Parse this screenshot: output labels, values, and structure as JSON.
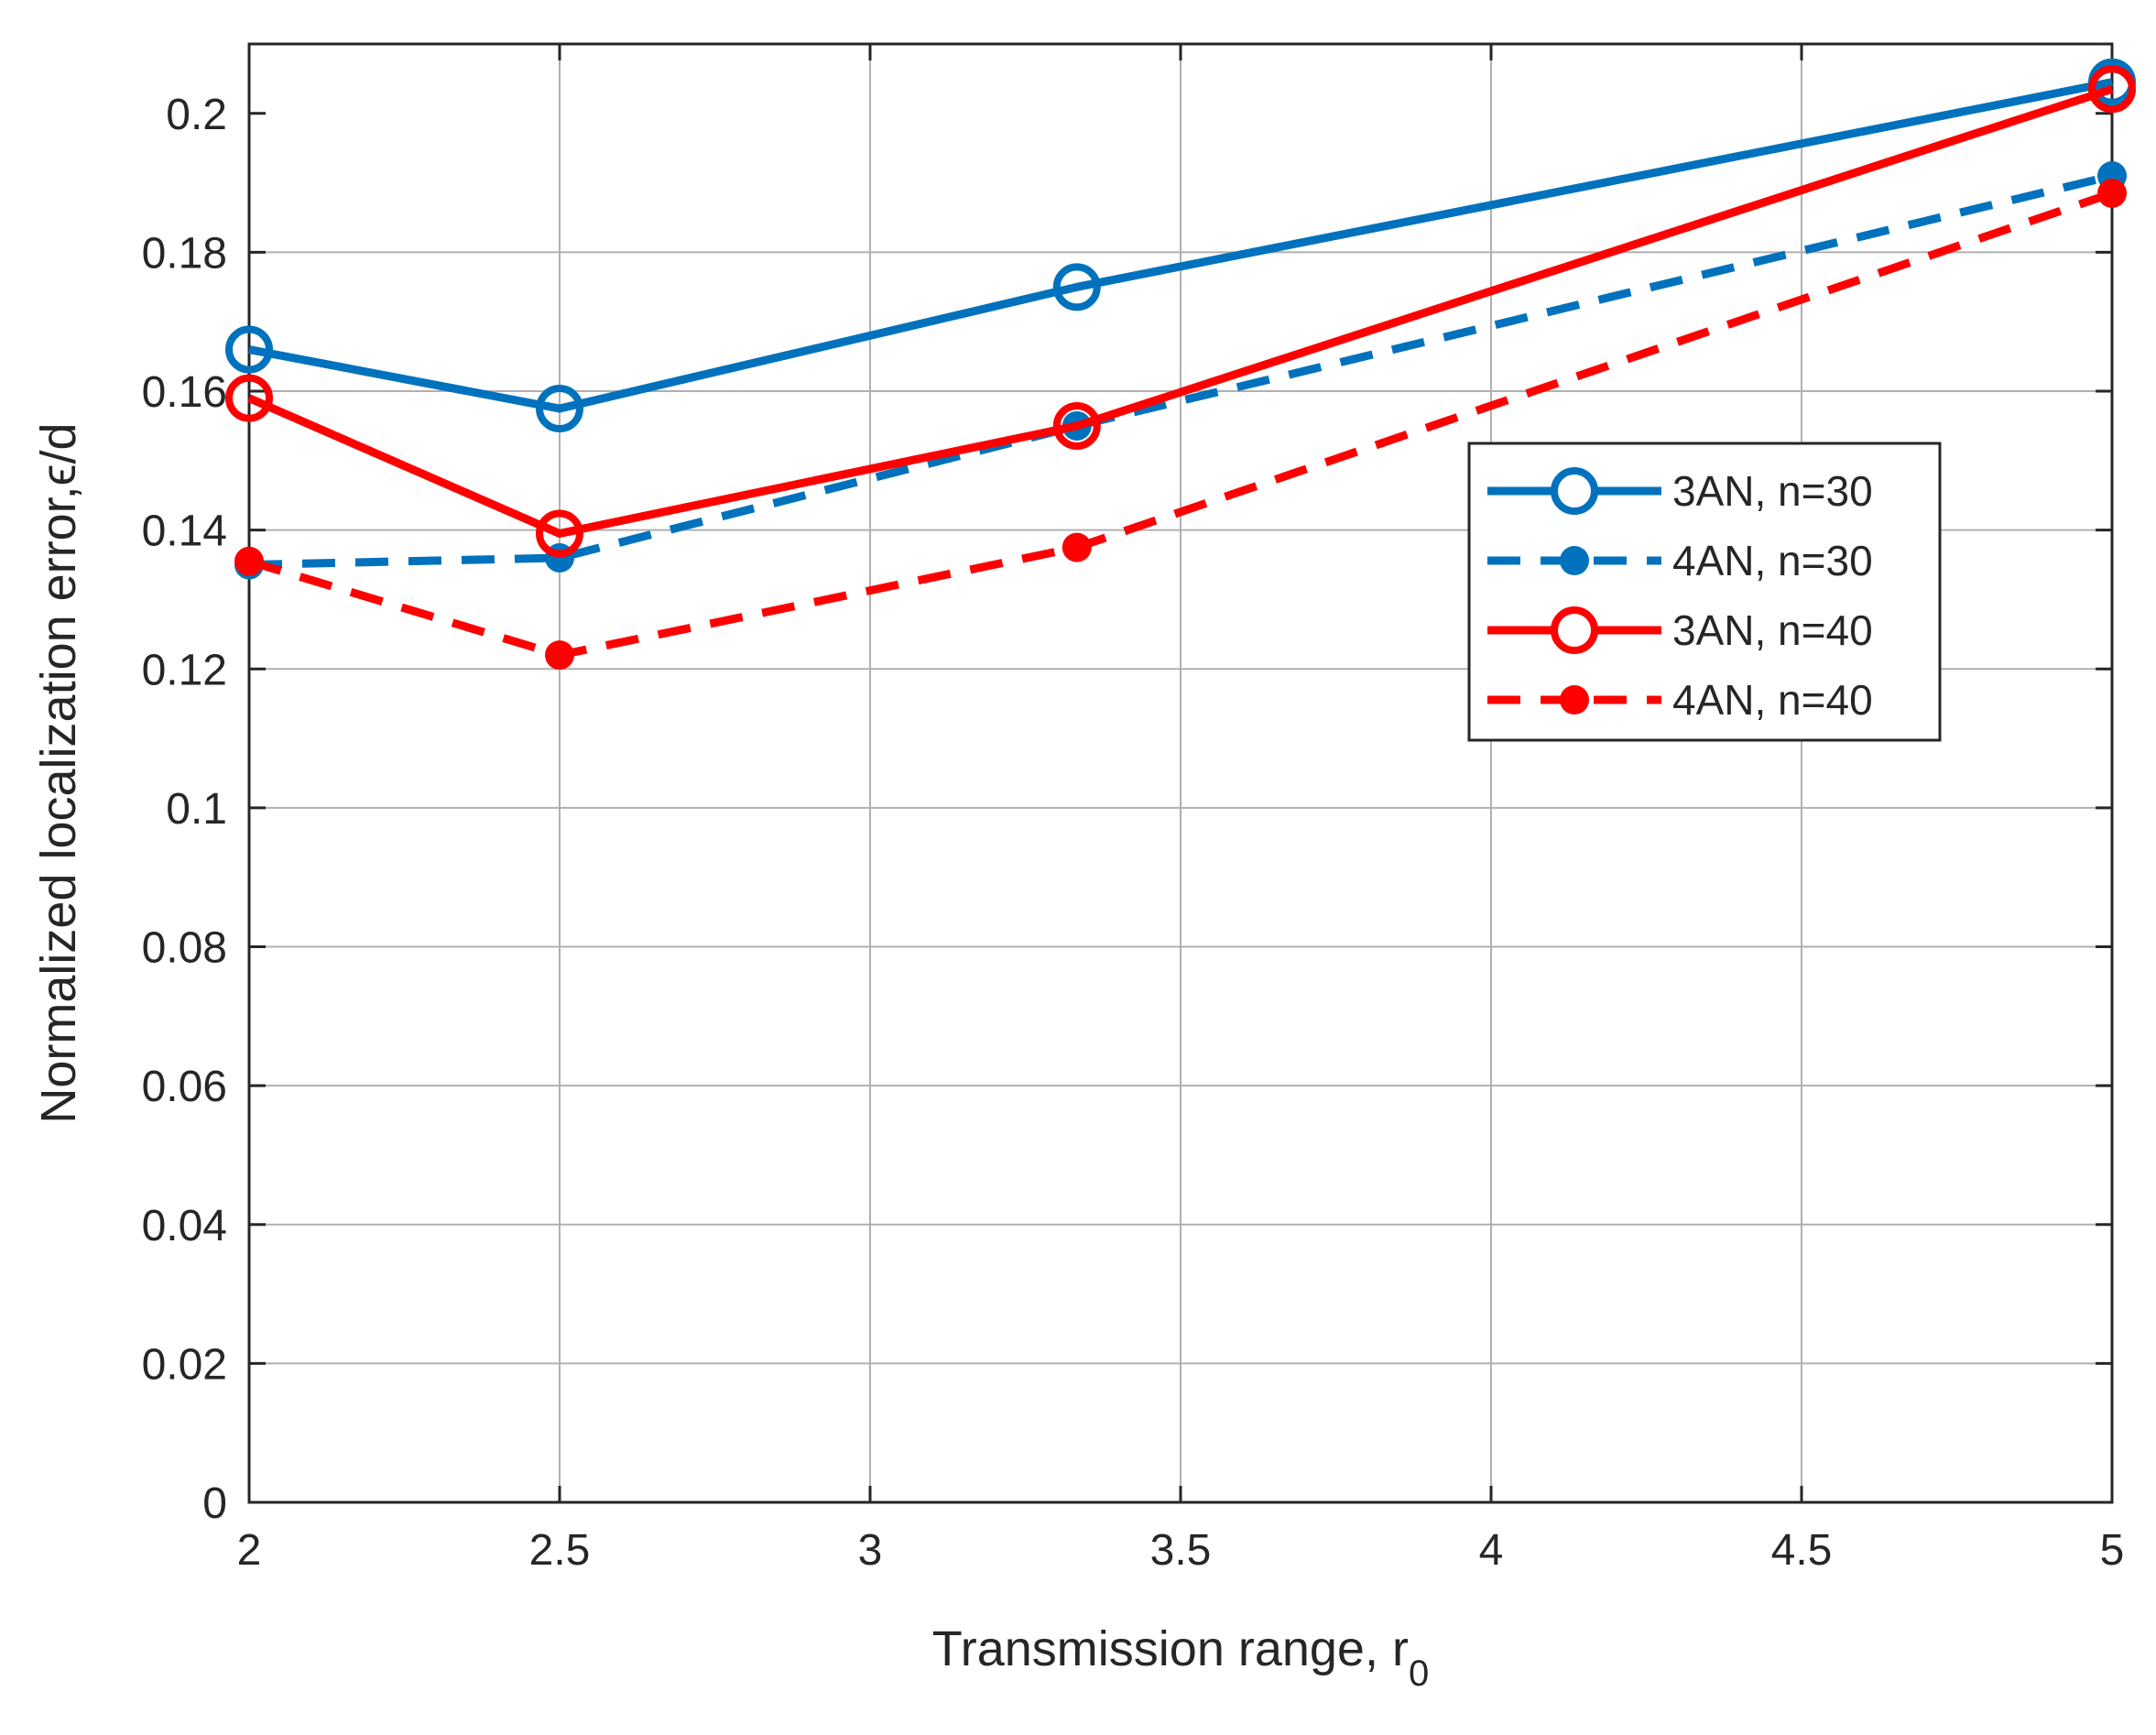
{
  "chart_data": {
    "type": "line",
    "title": "",
    "xlabel": "Transmission range, r",
    "xlabel_subscript": "0",
    "ylabel": "Normalized localization error,",
    "ylabel_symbol": "ϵ/d",
    "xlim": [
      2,
      5
    ],
    "ylim": [
      0,
      0.21
    ],
    "xticks": [
      2,
      2.5,
      3,
      3.5,
      4,
      4.5,
      5
    ],
    "xtick_labels": [
      "2",
      "2.5",
      "3",
      "3.5",
      "4",
      "4.5",
      "5"
    ],
    "yticks": [
      0,
      0.02,
      0.04,
      0.06,
      0.08,
      0.1,
      0.12,
      0.14,
      0.16,
      0.18,
      0.2
    ],
    "ytick_labels": [
      "0",
      "0.02",
      "0.04",
      "0.06",
      "0.08",
      "0.1",
      "0.12",
      "0.14",
      "0.16",
      "0.18",
      "0.2"
    ],
    "grid": true,
    "legend_position": "right",
    "x": [
      2,
      2.5,
      3.333,
      5
    ],
    "series": [
      {
        "name": "3AN, n=30",
        "color": "#0072BD",
        "line": "solid",
        "marker": "open-circle",
        "values": [
          0.166,
          0.1575,
          0.175,
          0.2045
        ]
      },
      {
        "name": "4AN, n=30",
        "color": "#0072BD",
        "line": "dashed",
        "marker": "filled-circle",
        "values": [
          0.135,
          0.136,
          0.155,
          0.191
        ]
      },
      {
        "name": "3AN, n=40",
        "color": "#FF0000",
        "line": "solid",
        "marker": "open-circle",
        "values": [
          0.159,
          0.1395,
          0.155,
          0.2035
        ]
      },
      {
        "name": "4AN, n=40",
        "color": "#FF0000",
        "line": "dashed",
        "marker": "filled-circle",
        "values": [
          0.1355,
          0.122,
          0.1375,
          0.1885
        ]
      }
    ]
  }
}
